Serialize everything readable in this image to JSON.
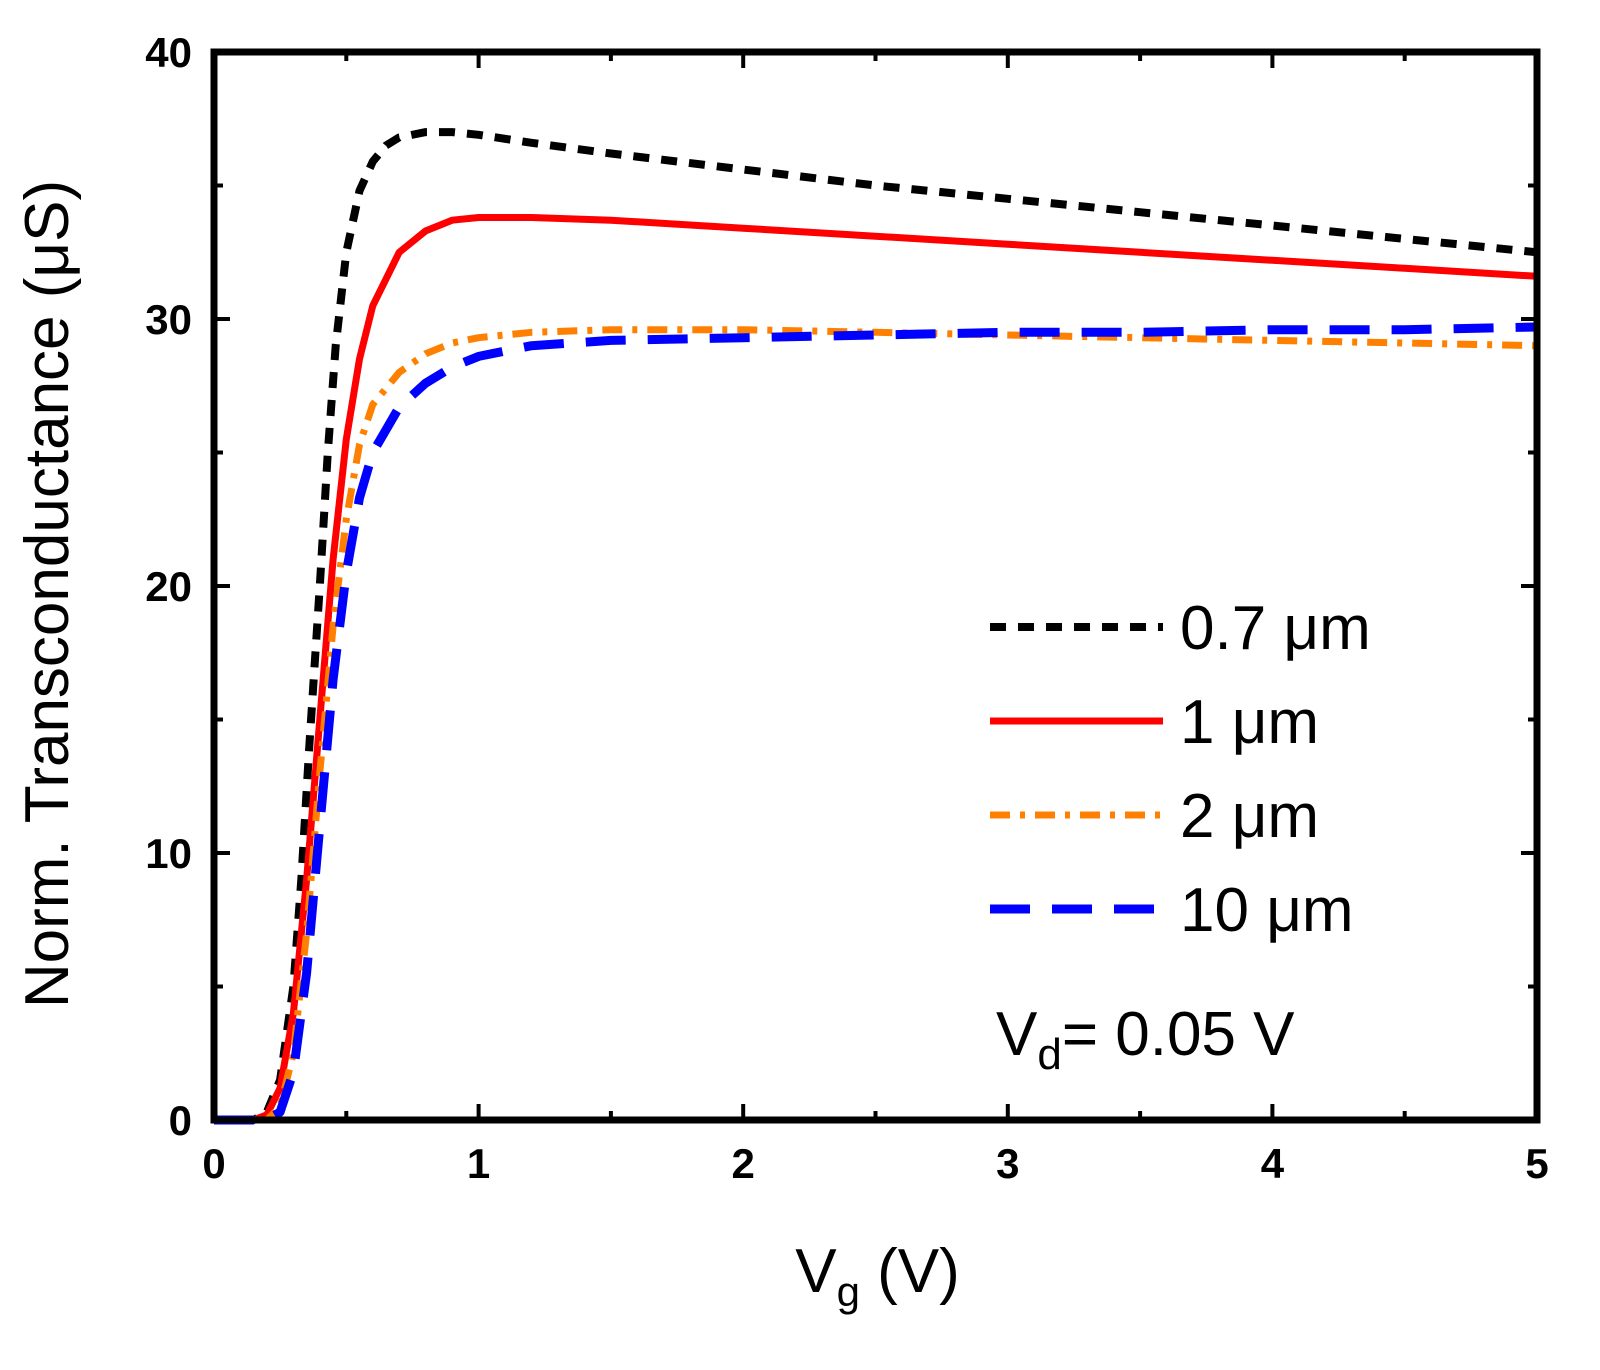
{
  "chart_data": {
    "type": "line",
    "title": "",
    "xlabel": "V",
    "xlabel_sub": "g",
    "xlabel_unit": " (V)",
    "ylabel": "Norm. Transconductance (μS)",
    "xlim": [
      0,
      5
    ],
    "ylim": [
      0,
      40
    ],
    "xticks": [
      0,
      1,
      2,
      3,
      4,
      5
    ],
    "yticks": [
      0,
      10,
      20,
      30,
      40
    ],
    "grid": false,
    "legend_position": "right-middle",
    "annotation": {
      "main": "V",
      "sub": "d",
      "rest": "= 0.05 V"
    },
    "series": [
      {
        "name": "0.7 μm",
        "color": "#000000",
        "dash": "dash",
        "x": [
          0,
          0.15,
          0.2,
          0.25,
          0.3,
          0.33,
          0.36,
          0.4,
          0.43,
          0.46,
          0.5,
          0.55,
          0.6,
          0.65,
          0.7,
          0.8,
          0.9,
          1.0,
          1.2,
          1.5,
          2.0,
          2.5,
          3.0,
          3.5,
          4.0,
          4.5,
          5.0
        ],
        "y": [
          0,
          0,
          0.3,
          1.5,
          5,
          9,
          14,
          20,
          25,
          29,
          32.5,
          34.8,
          35.9,
          36.5,
          36.8,
          37.0,
          37.0,
          36.9,
          36.6,
          36.2,
          35.6,
          35.0,
          34.5,
          34.0,
          33.5,
          33.0,
          32.5
        ]
      },
      {
        "name": "1 μm",
        "color": "#ff0000",
        "dash": "solid",
        "x": [
          0,
          0.15,
          0.2,
          0.25,
          0.3,
          0.35,
          0.4,
          0.45,
          0.5,
          0.55,
          0.6,
          0.7,
          0.8,
          0.9,
          1.0,
          1.2,
          1.5,
          2.0,
          2.5,
          3.0,
          3.5,
          4.0,
          4.5,
          5.0
        ],
        "y": [
          0,
          0,
          0.2,
          1.2,
          4,
          9,
          15,
          21,
          25.5,
          28.5,
          30.5,
          32.5,
          33.3,
          33.7,
          33.8,
          33.8,
          33.7,
          33.4,
          33.1,
          32.8,
          32.5,
          32.2,
          31.9,
          31.6
        ]
      },
      {
        "name": "2 μm",
        "color": "#ff8000",
        "dash": "dashdot",
        "x": [
          0,
          0.2,
          0.25,
          0.3,
          0.35,
          0.4,
          0.45,
          0.5,
          0.55,
          0.6,
          0.7,
          0.8,
          0.9,
          1.0,
          1.2,
          1.5,
          2.0,
          2.5,
          3.0,
          3.5,
          4.0,
          4.5,
          5.0
        ],
        "y": [
          0,
          0,
          0.5,
          2.5,
          7,
          13,
          18.5,
          22.5,
          25.3,
          26.8,
          28.0,
          28.7,
          29.1,
          29.3,
          29.5,
          29.6,
          29.6,
          29.5,
          29.4,
          29.3,
          29.2,
          29.1,
          29.0
        ]
      },
      {
        "name": "10 μm",
        "color": "#0000ff",
        "dash": "longdash",
        "x": [
          0,
          0.2,
          0.25,
          0.3,
          0.35,
          0.4,
          0.45,
          0.5,
          0.55,
          0.6,
          0.7,
          0.8,
          0.9,
          1.0,
          1.2,
          1.5,
          2.0,
          2.5,
          3.0,
          3.5,
          4.0,
          4.5,
          5.0
        ],
        "y": [
          0,
          0,
          0.3,
          1.8,
          5.5,
          11,
          16.5,
          20.5,
          23.3,
          25.0,
          26.7,
          27.6,
          28.2,
          28.6,
          29.0,
          29.2,
          29.3,
          29.4,
          29.5,
          29.5,
          29.6,
          29.6,
          29.7
        ]
      }
    ]
  }
}
